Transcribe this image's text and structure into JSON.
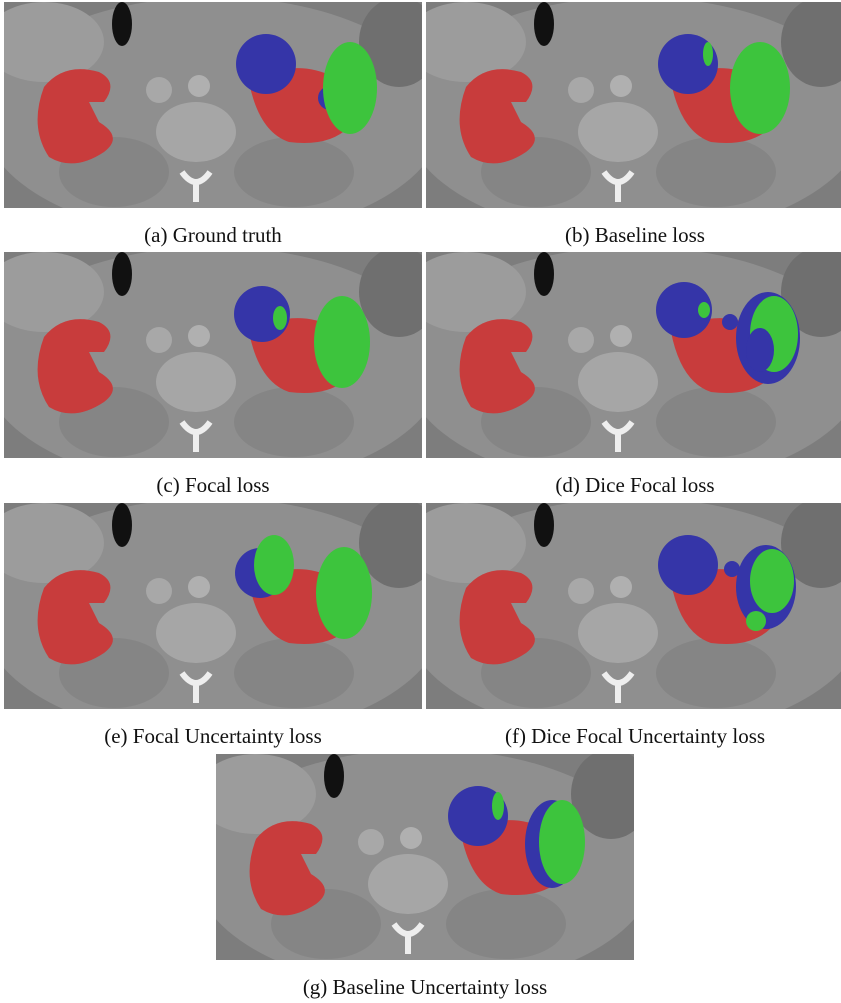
{
  "figure": {
    "panels": [
      {
        "caption": "(a) Ground truth"
      },
      {
        "caption": "(b) Baseline loss"
      },
      {
        "caption": "(c) Focal loss"
      },
      {
        "caption": "(d) Dice Focal loss"
      },
      {
        "caption": "(e) Focal Uncertainty loss"
      },
      {
        "caption": "(f) Dice Focal Uncertainty loss"
      },
      {
        "caption": "(g) Baseline Uncertainty loss"
      }
    ]
  }
}
